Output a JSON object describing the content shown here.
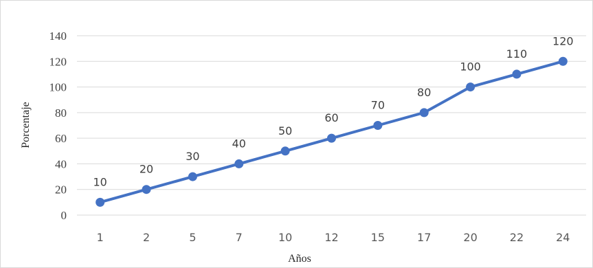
{
  "chart_data": {
    "type": "line",
    "categories": [
      "1",
      "2",
      "5",
      "7",
      "10",
      "12",
      "15",
      "17",
      "20",
      "22",
      "24"
    ],
    "series": [
      {
        "values": [
          10,
          20,
          30,
          40,
          50,
          60,
          70,
          80,
          100,
          110,
          120
        ]
      }
    ],
    "data_labels": [
      "10",
      "20",
      "30",
      "40",
      "50",
      "60",
      "70",
      "80",
      "100",
      "110",
      "120"
    ],
    "y_ticks": [
      "0",
      "20",
      "40",
      "60",
      "80",
      "100",
      "120",
      "140"
    ],
    "xlabel": "Años",
    "ylabel": "Porcentaje",
    "ylim": [
      0,
      140
    ],
    "grid": "horizontal",
    "legend": "none",
    "line_color": "#4472c4",
    "grid_color": "#d9d9d9"
  }
}
